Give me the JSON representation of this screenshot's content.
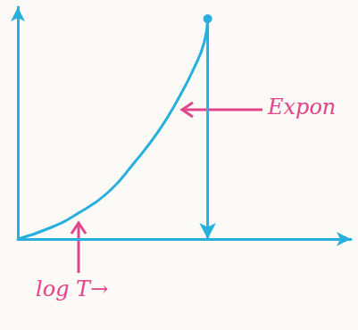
{
  "chart_data": {
    "type": "line",
    "color": "#27b0de",
    "x": [
      0,
      1,
      1.8,
      2.7,
      3.5,
      4.2,
      4.8,
      5.3,
      5.6,
      5.7
    ],
    "values": [
      0,
      0.5,
      1.1,
      2.0,
      3.3,
      4.6,
      6.0,
      7.4,
      8.5,
      9.5
    ],
    "xlim": [
      0,
      10
    ],
    "ylim": [
      0,
      10
    ],
    "tick_labels": false,
    "grid": false,
    "annotations": [
      "Expon",
      "log T→"
    ]
  }
}
